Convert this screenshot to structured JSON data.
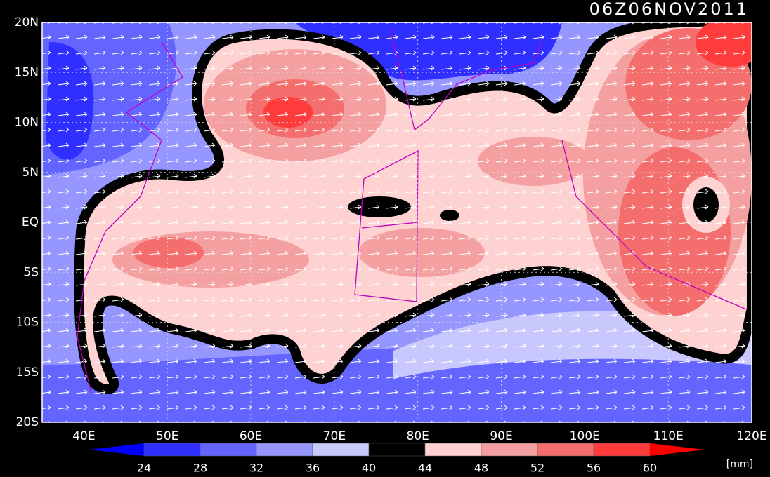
{
  "title": "06Z06NOV2011",
  "lat_labels": [
    "20N",
    "15N",
    "10N",
    "5N",
    "EQ",
    "5S",
    "10S",
    "15S",
    "20S"
  ],
  "lon_labels": [
    "40E",
    "50E",
    "60E",
    "70E",
    "80E",
    "90E",
    "100E",
    "110E",
    "120E"
  ],
  "colorbar": {
    "levels": [
      24,
      28,
      32,
      36,
      40,
      44,
      48,
      52,
      56,
      60
    ],
    "colors": [
      "#0000ff",
      "#2f2fff",
      "#6464ff",
      "#9696ff",
      "#c8c8ff",
      "#000000",
      "#ffd2d2",
      "#f5a0a0",
      "#f56e6e",
      "#ff3c3c",
      "#ff0000"
    ]
  },
  "units": "[mm]"
}
